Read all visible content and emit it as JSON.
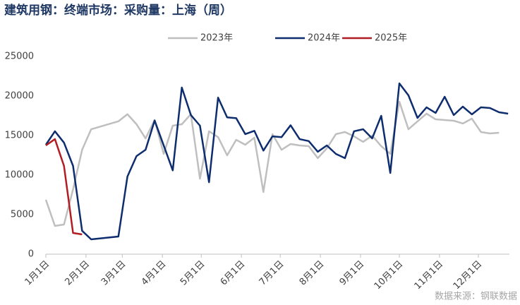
{
  "chart_data": {
    "type": "line",
    "title": "建筑用钢：终端市场：采购量：上海（周）",
    "source": "数据来源：钢联数据",
    "xlim": [
      0,
      358
    ],
    "xticks": [
      {
        "value": 0,
        "label": "1月1日"
      },
      {
        "value": 31,
        "label": "2月1日"
      },
      {
        "value": 59,
        "label": "3月1日"
      },
      {
        "value": 90,
        "label": "4月1日"
      },
      {
        "value": 120,
        "label": "5月1日"
      },
      {
        "value": 151,
        "label": "6月1日"
      },
      {
        "value": 181,
        "label": "7月1日"
      },
      {
        "value": 212,
        "label": "8月1日"
      },
      {
        "value": 243,
        "label": "9月1日"
      },
      {
        "value": 273,
        "label": "10月1日"
      },
      {
        "value": 304,
        "label": "11月1日"
      },
      {
        "value": 334,
        "label": "12月1日"
      }
    ],
    "ylim": [
      0,
      25000
    ],
    "yticks": [
      0,
      5000,
      10000,
      15000,
      20000,
      25000
    ],
    "grid": false,
    "legend": "top",
    "series": [
      {
        "name": "2023年",
        "color": "#bfbfbf",
        "x": [
          0,
          7,
          14,
          21,
          28,
          35,
          56,
          63,
          70,
          77,
          84,
          91,
          98,
          105,
          112,
          119,
          126,
          133,
          140,
          147,
          154,
          161,
          168,
          175,
          182,
          189,
          196,
          203,
          210,
          217,
          224,
          231,
          238,
          245,
          252,
          259,
          266,
          273,
          280,
          287,
          294,
          301,
          308,
          315,
          322,
          329,
          336,
          343,
          350
        ],
        "values": [
          6880,
          3570,
          3750,
          8200,
          13200,
          15800,
          16800,
          17700,
          16430,
          14640,
          16970,
          12680,
          16250,
          16430,
          17700,
          9550,
          15540,
          14800,
          12500,
          14460,
          13840,
          14730,
          7860,
          15180,
          13200,
          13930,
          13750,
          13660,
          12140,
          13390,
          15180,
          15450,
          14900,
          14200,
          15000,
          13660,
          12680,
          19290,
          15800,
          16790,
          17770,
          17050,
          16960,
          16880,
          16520,
          17140,
          15450,
          15270,
          15360
        ]
      },
      {
        "name": "2024年",
        "color": "#0e2d6e",
        "x": [
          0,
          7,
          14,
          21,
          28,
          35,
          56,
          63,
          70,
          77,
          84,
          98,
          105,
          112,
          119,
          126,
          133,
          140,
          147,
          154,
          161,
          168,
          175,
          182,
          189,
          196,
          203,
          210,
          217,
          224,
          231,
          238,
          245,
          252,
          259,
          266,
          273,
          280,
          287,
          294,
          301,
          308,
          315,
          322,
          329,
          336,
          343,
          350,
          357
        ],
        "values": [
          13840,
          15540,
          14100,
          11160,
          2950,
          1875,
          2230,
          9820,
          12400,
          13200,
          16900,
          10600,
          21070,
          17600,
          16250,
          9100,
          19800,
          17300,
          17200,
          15180,
          15600,
          13100,
          14900,
          14800,
          16300,
          14550,
          14300,
          12950,
          13750,
          12680,
          12140,
          15540,
          15800,
          14640,
          17500,
          10270,
          21600,
          20090,
          17230,
          18570,
          17860,
          19910,
          17590,
          18660,
          17680,
          18570,
          18480,
          17950,
          17770
        ]
      },
      {
        "name": "2025年",
        "color": "#b01e23",
        "x": [
          0,
          7,
          14,
          21,
          28
        ],
        "values": [
          13750,
          14550,
          11160,
          2680,
          2500
        ]
      }
    ]
  }
}
